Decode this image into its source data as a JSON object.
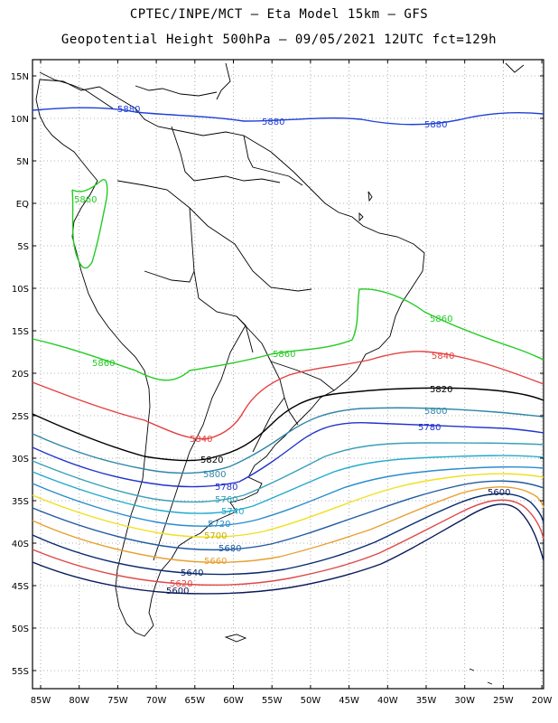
{
  "header": {
    "line1": "CPTEC/INPE/MCT –  Eta Model 15km – GFS",
    "line2": "Geopotential Height 500hPa – 09/05/2021 12UTC fct=129h"
  },
  "axes": {
    "lat_ticks": [
      "15N",
      "10N",
      "5N",
      "EQ",
      "5S",
      "10S",
      "15S",
      "20S",
      "25S",
      "30S",
      "35S",
      "40S",
      "45S",
      "50S",
      "55S"
    ],
    "lon_ticks": [
      "85W",
      "80W",
      "75W",
      "70W",
      "65W",
      "60W",
      "55W",
      "50W",
      "45W",
      "40W",
      "35W",
      "30W",
      "25W",
      "20W"
    ]
  },
  "contours": [
    {
      "value": "5880",
      "color": "#1f3fd6"
    },
    {
      "value": "5860",
      "color": "#22cc22"
    },
    {
      "value": "5840",
      "color": "#e64040"
    },
    {
      "value": "5820",
      "color": "#000000"
    },
    {
      "value": "5800",
      "color": "#2e86a8"
    },
    {
      "value": "5780",
      "color": "#2233cc"
    },
    {
      "value": "5760",
      "color": "#3aa0b8"
    },
    {
      "value": "5740",
      "color": "#22aacc"
    },
    {
      "value": "5720",
      "color": "#2a8ccc"
    },
    {
      "value": "5700",
      "color": "#f0e020"
    },
    {
      "value": "5680",
      "color": "#1e5aa0"
    },
    {
      "value": "5660",
      "color": "#e8a030"
    },
    {
      "value": "5640",
      "color": "#0a2a6e"
    },
    {
      "value": "5620",
      "color": "#e04848"
    },
    {
      "value": "5600",
      "color": "#0a1a5a"
    }
  ]
}
